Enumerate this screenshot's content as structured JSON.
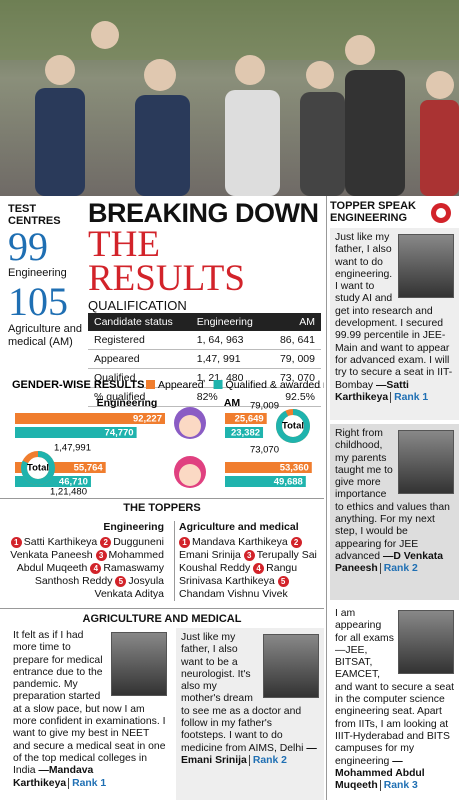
{
  "header": {
    "label": "TEST CENTRES",
    "centres": [
      {
        "count": "99",
        "label": "Engineering"
      },
      {
        "count": "105",
        "label": "Agriculture and medical (AM)"
      }
    ],
    "headline_1": "BREAKING DOWN",
    "headline_2": "THE RESULTS",
    "section": "QUALIFICATION"
  },
  "table": {
    "columns": [
      "Candidate status",
      "Engineering",
      "AM"
    ],
    "rows": [
      [
        "Registered",
        "1, 64, 963",
        "86, 641"
      ],
      [
        "Appeared",
        "1,47, 991",
        "79, 009"
      ],
      [
        "Qualified",
        "1, 21, 480",
        "73, 070"
      ],
      [
        "% qualified",
        "82%",
        "92.5%"
      ]
    ]
  },
  "gender": {
    "title": "GENDER-WISE RESULTS",
    "series": [
      {
        "name": "Appeared",
        "color": "#f07d2e"
      },
      {
        "name": "Qualified & awarded rank",
        "color": "#1fb3ad"
      }
    ],
    "total_label": "Total",
    "panels": [
      {
        "label": "Engineering",
        "appeared_total": {
          "value": 147991,
          "label": "1,47,991"
        },
        "qualified_total": {
          "value": 121480,
          "label": "1,21,480"
        },
        "bars": [
          {
            "values": [
              92227,
              74770
            ],
            "value_labels": [
              "92,227",
              "74,770"
            ]
          },
          {
            "values": [
              55764,
              46710
            ],
            "value_labels": [
              "55,764",
              "46,710"
            ]
          }
        ]
      },
      {
        "label": "AM",
        "appeared_total": {
          "value": 79009,
          "label": "79,009"
        },
        "qualified_total": {
          "value": 73070,
          "label": "73,070"
        },
        "bars": [
          {
            "values": [
              25649,
              23382
            ],
            "value_labels": [
              "25,649",
              "23,382"
            ]
          },
          {
            "values": [
              53360,
              49688
            ],
            "value_labels": [
              "53,360",
              "49,688"
            ]
          }
        ]
      }
    ]
  },
  "toppers": {
    "title": "THE TOPPERS",
    "groups": [
      {
        "label": "Engineering",
        "list": [
          {
            "rank": 1,
            "name": "Satti Karthikeya"
          },
          {
            "rank": 2,
            "name": "Dugguneni Venkata Paneesh"
          },
          {
            "rank": 3,
            "name": "Mohammed Abdul Muqeeth"
          },
          {
            "rank": 4,
            "name": "Ramaswamy Santhosh Reddy"
          },
          {
            "rank": 5,
            "name": "Josyula Venkata Aditya"
          }
        ]
      },
      {
        "label": "Agriculture and medical",
        "list": [
          {
            "rank": 1,
            "name": "Mandava Karthikeya"
          },
          {
            "rank": 2,
            "name": "Emani Srinija"
          },
          {
            "rank": 3,
            "name": "Terupally Sai Koushal Reddy"
          },
          {
            "rank": 4,
            "name": "Rangu Srinivasa Karthikeya"
          },
          {
            "rank": 5,
            "name": "Chandam Vishnu Vivek"
          }
        ]
      }
    ]
  },
  "topper_speak": {
    "title": "TOPPER SPEAK ENGINEERING",
    "quotes": [
      {
        "text": "Just like my father, I also want to do engineering. I want to study AI and get into research and development. I secured 99.99 percentile in JEE-Main and want to appear for advanced exam. I will try to secure a seat in IIT-Bombay",
        "name": "—Satti Karthikeya",
        "rank": "Rank 1"
      },
      {
        "text": "Right from childhood, my parents taught me to give more importance to ethics and values than anything. For my next step, I would be appearing for JEE advanced",
        "name": "—D Venkata Paneesh",
        "rank": "Rank 2"
      },
      {
        "text": "I am appearing for all exams—JEE, BITSAT, EAMCET, and want to secure a seat in the computer science engineering seat. Apart from IITs, I am looking at IIIT-Hyderabad and BITS campuses for my engineering",
        "name": "—Mohammed Abdul Muqeeth",
        "rank": "Rank 3"
      }
    ]
  },
  "agri": {
    "title": "AGRICULTURE AND MEDICAL",
    "quotes": [
      {
        "text": "It felt as if I had more time to prepare for medical entrance due to the pandemic. My preparation started at a slow pace, but now I am more confident in examinations. I want to give my best in NEET and secure a medical seat in one of the top medical colleges in India",
        "name": "—Mandava Karthikeya",
        "rank": "Rank 1"
      },
      {
        "text": "Just like my father, I also want to be a neurologist. It's also my mother's dream to see me as a doctor and follow in my father's footsteps. I want to do medicine from AIMS, Delhi",
        "name": "—Emani Srinija",
        "rank": "Rank 2"
      }
    ]
  }
}
